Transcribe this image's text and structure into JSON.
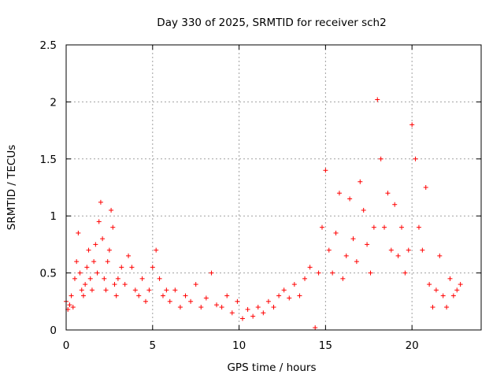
{
  "chart_data": {
    "type": "scatter",
    "title": "Day 330 of 2025, SRMTID for receiver sch2",
    "xlabel": "GPS time / hours",
    "ylabel": "SRMTID / TECUs",
    "xlim": [
      0,
      24
    ],
    "ylim": [
      0,
      2.5
    ],
    "xticks": [
      0,
      5,
      10,
      15,
      20
    ],
    "xtick_labels": [
      "0",
      "5",
      "10",
      "15",
      "20"
    ],
    "yticks": [
      0,
      0.5,
      1,
      1.5,
      2,
      2.5
    ],
    "ytick_labels": [
      "0",
      "0.5",
      "1",
      "1.5",
      "2",
      "2.5"
    ],
    "grid": true,
    "marker": "+",
    "color": "#ff0000",
    "series": [
      {
        "name": "sch2",
        "x": [
          0.0,
          0.1,
          0.2,
          0.3,
          0.4,
          0.5,
          0.6,
          0.7,
          0.8,
          0.9,
          1.0,
          1.1,
          1.2,
          1.3,
          1.4,
          1.5,
          1.6,
          1.7,
          1.8,
          1.9,
          2.0,
          2.1,
          2.2,
          2.3,
          2.4,
          2.5,
          2.6,
          2.7,
          2.8,
          2.9,
          3.0,
          3.2,
          3.4,
          3.6,
          3.8,
          4.0,
          4.2,
          4.4,
          4.6,
          4.8,
          5.0,
          5.2,
          5.4,
          5.6,
          5.8,
          6.0,
          6.3,
          6.6,
          6.9,
          7.2,
          7.5,
          7.8,
          8.1,
          8.4,
          8.7,
          9.0,
          9.3,
          9.6,
          9.9,
          10.2,
          10.5,
          10.8,
          11.1,
          11.4,
          11.7,
          12.0,
          12.3,
          12.6,
          12.9,
          13.2,
          13.5,
          13.8,
          14.1,
          14.4,
          14.6,
          14.8,
          15.0,
          15.2,
          15.4,
          15.6,
          15.8,
          16.0,
          16.2,
          16.4,
          16.6,
          16.8,
          17.0,
          17.2,
          17.4,
          17.6,
          17.8,
          18.0,
          18.2,
          18.4,
          18.6,
          18.8,
          19.0,
          19.2,
          19.4,
          19.6,
          19.8,
          20.0,
          20.2,
          20.4,
          20.6,
          20.8,
          21.0,
          21.2,
          21.4,
          21.6,
          21.8,
          22.0,
          22.2,
          22.4,
          22.6,
          22.8
        ],
        "y": [
          0.25,
          0.18,
          0.22,
          0.3,
          0.2,
          0.45,
          0.6,
          0.85,
          0.5,
          0.35,
          0.3,
          0.4,
          0.55,
          0.7,
          0.45,
          0.35,
          0.6,
          0.75,
          0.5,
          0.95,
          1.12,
          0.8,
          0.45,
          0.35,
          0.6,
          0.7,
          1.05,
          0.9,
          0.4,
          0.3,
          0.45,
          0.55,
          0.4,
          0.65,
          0.55,
          0.35,
          0.3,
          0.45,
          0.25,
          0.35,
          0.55,
          0.7,
          0.45,
          0.3,
          0.35,
          0.25,
          0.35,
          0.2,
          0.3,
          0.25,
          0.4,
          0.2,
          0.28,
          0.5,
          0.22,
          0.2,
          0.3,
          0.15,
          0.25,
          0.1,
          0.18,
          0.12,
          0.2,
          0.15,
          0.25,
          0.2,
          0.3,
          0.35,
          0.28,
          0.4,
          0.3,
          0.45,
          0.55,
          0.02,
          0.5,
          0.9,
          1.4,
          0.7,
          0.5,
          0.85,
          1.2,
          0.45,
          0.65,
          1.15,
          0.8,
          0.6,
          1.3,
          1.05,
          0.75,
          0.5,
          0.9,
          2.02,
          1.5,
          0.9,
          1.2,
          0.7,
          1.1,
          0.65,
          0.9,
          0.5,
          0.7,
          1.8,
          1.5,
          0.9,
          0.7,
          1.25,
          0.4,
          0.2,
          0.35,
          0.65,
          0.3,
          0.2,
          0.45,
          0.3,
          0.35,
          0.4
        ]
      }
    ]
  }
}
